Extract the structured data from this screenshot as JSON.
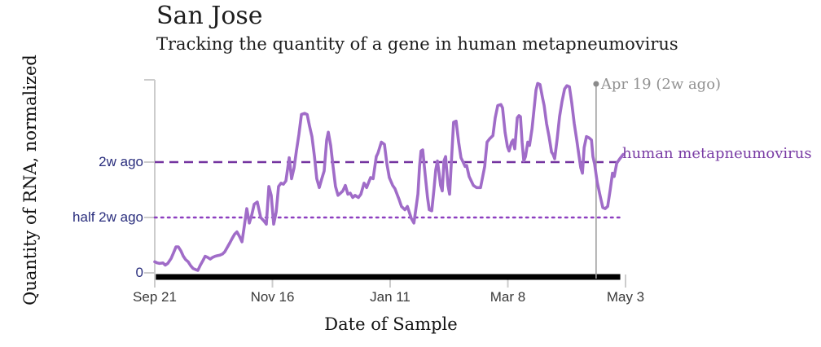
{
  "header": {
    "title": "San Jose",
    "subtitle": "Tracking the quantity of a gene in human metapneumovirus"
  },
  "colors": {
    "series_line": "#a06cc8",
    "dashed_reference": "#7434a0",
    "dotted_reference": "#8d3fc0",
    "axis": "#cccccc",
    "ref_label_text": "#2a2e7d",
    "annotation_line": "#9e9e9e",
    "annotation_text": "#919191",
    "series_label_text": "#7a3da5",
    "collection_bar": "#000000"
  },
  "chart_data": {
    "type": "line",
    "title": "San Jose",
    "subtitle": "Tracking the quantity of a gene in human metapneumovirus",
    "xlabel": "Date of Sample",
    "ylabel": "Quantity of RNA, normalized",
    "x_unit": "days since Sep 21",
    "x_ticks": [
      {
        "label": "Sep 21",
        "day": 0
      },
      {
        "label": "Nov 16",
        "day": 56
      },
      {
        "label": "Jan 11",
        "day": 112
      },
      {
        "label": "Mar 8",
        "day": 168
      },
      {
        "label": "May 3",
        "day": 224
      }
    ],
    "y_axis_range": [
      0,
      1.74
    ],
    "y_ticks": [
      {
        "label": "0",
        "value": 0
      },
      {
        "label": "half 2w ago",
        "value": 0.5
      },
      {
        "label": "2w ago",
        "value": 1.0
      }
    ],
    "y_reference_lines": [
      {
        "label": "2w ago",
        "value": 1.0,
        "style": "dashed"
      },
      {
        "label": "half 2w ago",
        "value": 0.5,
        "style": "dotted"
      }
    ],
    "vertical_marker": {
      "label": "Apr 19 (2w ago)",
      "day": 210
    },
    "collection_bar": {
      "start_day": 0.5,
      "end_day": 221.5
    },
    "grid": false,
    "legend_position": "right-of-line-end",
    "series": [
      {
        "name": "human metapneumovirus",
        "points": [
          [
            0,
            0.1
          ],
          [
            1.2,
            0.09
          ],
          [
            2.3,
            0.085
          ],
          [
            3.9,
            0.09
          ],
          [
            5,
            0.07
          ],
          [
            6.2,
            0.085
          ],
          [
            7.8,
            0.13
          ],
          [
            8.9,
            0.18
          ],
          [
            10.1,
            0.235
          ],
          [
            11.2,
            0.235
          ],
          [
            12.4,
            0.2
          ],
          [
            13.6,
            0.15
          ],
          [
            14.7,
            0.12
          ],
          [
            15.9,
            0.1
          ],
          [
            17.1,
            0.065
          ],
          [
            18.2,
            0.04
          ],
          [
            19.4,
            0.03
          ],
          [
            20.5,
            0.022
          ],
          [
            21.7,
            0.07
          ],
          [
            22.9,
            0.11
          ],
          [
            24,
            0.15
          ],
          [
            25.2,
            0.14
          ],
          [
            26.4,
            0.125
          ],
          [
            27.5,
            0.14
          ],
          [
            28.7,
            0.15
          ],
          [
            29.8,
            0.155
          ],
          [
            31,
            0.16
          ],
          [
            32.2,
            0.17
          ],
          [
            33.3,
            0.19
          ],
          [
            34.5,
            0.23
          ],
          [
            35.7,
            0.27
          ],
          [
            36.8,
            0.31
          ],
          [
            38,
            0.35
          ],
          [
            39.1,
            0.37
          ],
          [
            40.3,
            0.33
          ],
          [
            41.5,
            0.28
          ],
          [
            42.6,
            0.42
          ],
          [
            43.8,
            0.58
          ],
          [
            45,
            0.45
          ],
          [
            46.1,
            0.52
          ],
          [
            47.3,
            0.62
          ],
          [
            48.8,
            0.64
          ],
          [
            50.4,
            0.5
          ],
          [
            51.9,
            0.47
          ],
          [
            53.1,
            0.44
          ],
          [
            54.3,
            0.78
          ],
          [
            55.4,
            0.7
          ],
          [
            56.6,
            0.44
          ],
          [
            57.8,
            0.55
          ],
          [
            58.9,
            0.78
          ],
          [
            60.1,
            0.81
          ],
          [
            61.2,
            0.8
          ],
          [
            62.4,
            0.83
          ],
          [
            64,
            1.04
          ],
          [
            65.1,
            0.85
          ],
          [
            66.3,
            0.95
          ],
          [
            67.4,
            1.1
          ],
          [
            68.6,
            1.25
          ],
          [
            69.8,
            1.43
          ],
          [
            71.3,
            1.44
          ],
          [
            72.5,
            1.43
          ],
          [
            73.6,
            1.33
          ],
          [
            74.8,
            1.23
          ],
          [
            76,
            1.05
          ],
          [
            77.1,
            0.85
          ],
          [
            78.3,
            0.77
          ],
          [
            79.5,
            0.85
          ],
          [
            80.6,
            0.92
          ],
          [
            81.8,
            1.2
          ],
          [
            82.6,
            1.27
          ],
          [
            83.7,
            1.15
          ],
          [
            84.9,
            0.95
          ],
          [
            86,
            0.78
          ],
          [
            87.2,
            0.7
          ],
          [
            88.4,
            0.72
          ],
          [
            89.5,
            0.74
          ],
          [
            90.7,
            0.79
          ],
          [
            91.9,
            0.71
          ],
          [
            93,
            0.72
          ],
          [
            94.2,
            0.68
          ],
          [
            95.3,
            0.7
          ],
          [
            96.9,
            0.68
          ],
          [
            98.1,
            0.71
          ],
          [
            99.6,
            0.81
          ],
          [
            100.8,
            0.77
          ],
          [
            102.7,
            0.86
          ],
          [
            103.9,
            0.85
          ],
          [
            105.4,
            1.05
          ],
          [
            106.2,
            1.08
          ],
          [
            107.8,
            1.18
          ],
          [
            109.3,
            1.16
          ],
          [
            110.5,
            0.98
          ],
          [
            111.6,
            0.86
          ],
          [
            113.2,
            0.79
          ],
          [
            114.3,
            0.76
          ],
          [
            116.3,
            0.66
          ],
          [
            117.4,
            0.6
          ],
          [
            119,
            0.57
          ],
          [
            120.2,
            0.6
          ],
          [
            122.1,
            0.49
          ],
          [
            123.3,
            0.45
          ],
          [
            125.2,
            0.71
          ],
          [
            126,
            0.96
          ],
          [
            126.7,
            1.1
          ],
          [
            127.5,
            1.11
          ],
          [
            128.7,
            0.88
          ],
          [
            129.8,
            0.68
          ],
          [
            130.6,
            0.57
          ],
          [
            131.8,
            0.56
          ],
          [
            132.9,
            0.76
          ],
          [
            133.7,
            0.93
          ],
          [
            134.5,
            1.01
          ],
          [
            135.3,
            0.9
          ],
          [
            136,
            0.79
          ],
          [
            136.8,
            0.74
          ],
          [
            137.6,
            1.01
          ],
          [
            138.4,
            1.05
          ],
          [
            139.5,
            0.79
          ],
          [
            140.3,
            0.71
          ],
          [
            142.2,
            1.36
          ],
          [
            143.4,
            1.37
          ],
          [
            144.6,
            1.18
          ],
          [
            145.7,
            1.04
          ],
          [
            147.7,
            0.96
          ],
          [
            148.4,
            0.97
          ],
          [
            149.6,
            0.87
          ],
          [
            151.6,
            0.79
          ],
          [
            153.1,
            0.77
          ],
          [
            155,
            0.77
          ],
          [
            157,
            0.96
          ],
          [
            158.1,
            1.18
          ],
          [
            159.3,
            1.21
          ],
          [
            160.9,
            1.24
          ],
          [
            162,
            1.4
          ],
          [
            163.2,
            1.51
          ],
          [
            164.7,
            1.52
          ],
          [
            165.5,
            1.49
          ],
          [
            166.7,
            1.27
          ],
          [
            167.8,
            1.14
          ],
          [
            168.6,
            1.1
          ],
          [
            169.8,
            1.18
          ],
          [
            170.5,
            1.2
          ],
          [
            171.3,
            1.12
          ],
          [
            172.5,
            1.4
          ],
          [
            173.3,
            1.42
          ],
          [
            174,
            1.41
          ],
          [
            174.8,
            1.18
          ],
          [
            175.6,
            1.01
          ],
          [
            176.4,
            1.05
          ],
          [
            177.5,
            1.18
          ],
          [
            178.3,
            1.15
          ],
          [
            179.5,
            1.3
          ],
          [
            180.6,
            1.5
          ],
          [
            181.4,
            1.65
          ],
          [
            182.2,
            1.71
          ],
          [
            183.3,
            1.7
          ],
          [
            184.5,
            1.58
          ],
          [
            185.3,
            1.51
          ],
          [
            186.4,
            1.35
          ],
          [
            187.6,
            1.23
          ],
          [
            188.8,
            1.09
          ],
          [
            189.5,
            1.07
          ],
          [
            190.3,
            1.03
          ],
          [
            191.5,
            1.21
          ],
          [
            192.6,
            1.41
          ],
          [
            193.8,
            1.55
          ],
          [
            195,
            1.66
          ],
          [
            196.1,
            1.69
          ],
          [
            197.3,
            1.68
          ],
          [
            198.4,
            1.54
          ],
          [
            199.6,
            1.35
          ],
          [
            200.8,
            1.2
          ],
          [
            201.9,
            1.05
          ],
          [
            202.7,
            0.95
          ],
          [
            203.5,
            0.9
          ],
          [
            204.3,
            1.13
          ],
          [
            205.4,
            1.23
          ],
          [
            206.6,
            1.22
          ],
          [
            207.8,
            1.2
          ],
          [
            208.5,
            1.05
          ],
          [
            209.3,
            0.98
          ],
          [
            210.5,
            0.82
          ],
          [
            212,
            0.69
          ],
          [
            213.2,
            0.59
          ],
          [
            214.3,
            0.58
          ],
          [
            215.5,
            0.6
          ],
          [
            216.7,
            0.75
          ],
          [
            217.8,
            0.9
          ],
          [
            218.6,
            0.87
          ],
          [
            219.8,
            0.99
          ],
          [
            221.3,
            1.03
          ],
          [
            222.9,
            1.07
          ]
        ]
      }
    ]
  }
}
